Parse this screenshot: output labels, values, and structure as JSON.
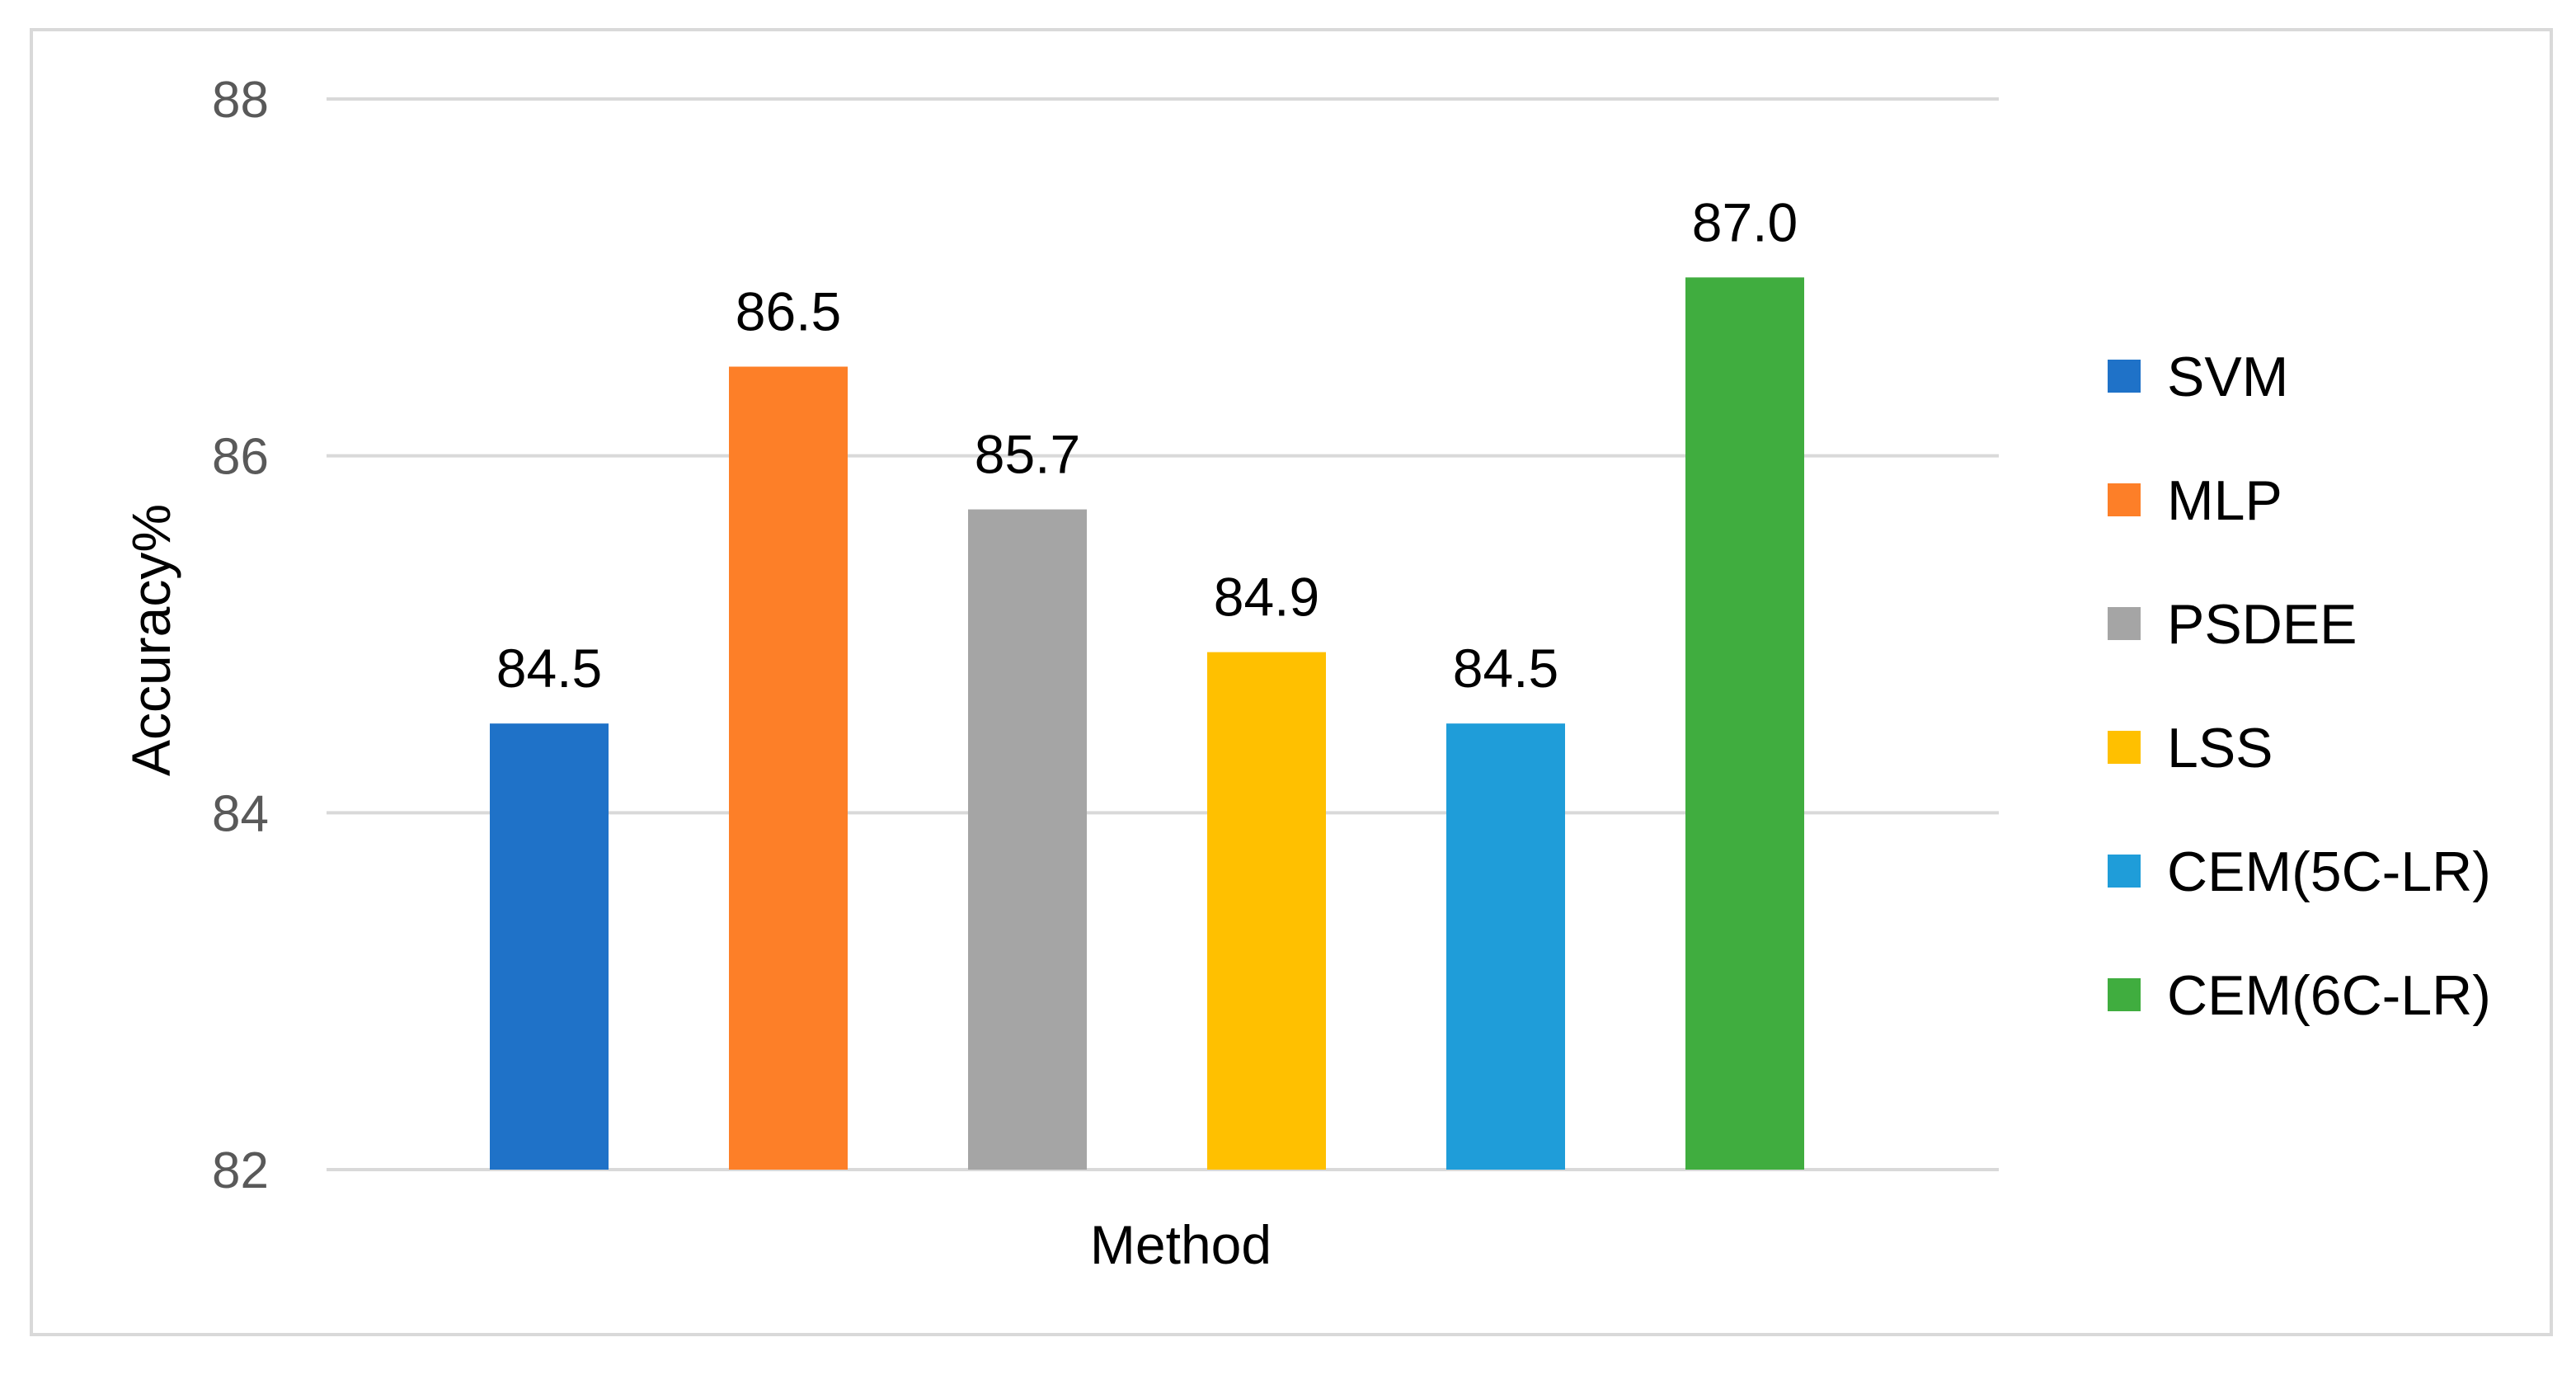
{
  "chart_data": {
    "type": "bar",
    "categories": [
      "SVM",
      "MLP",
      "PSDEE",
      "LSS",
      "CEM(5C-LR)",
      "CEM(6C-LR)"
    ],
    "values": [
      84.5,
      86.5,
      85.7,
      84.9,
      84.5,
      87.0
    ],
    "value_labels": [
      "84.5",
      "86.5",
      "85.7",
      "84.9",
      "84.5",
      "87.0"
    ],
    "colors": [
      "#1f72c8",
      "#fd7f28",
      "#a5a5a5",
      "#ffc000",
      "#1f9dd9",
      "#40ad3f"
    ],
    "xlabel": "Method",
    "ylabel": "Accuracy%",
    "ylim": [
      82,
      88
    ],
    "yticks": [
      "82",
      "84",
      "86",
      "88"
    ],
    "grid": true,
    "legend": {
      "position": "right",
      "entries": [
        "SVM",
        "MLP",
        "PSDEE",
        "LSS",
        "CEM(5C-LR)",
        "CEM(6C-LR)"
      ]
    }
  }
}
